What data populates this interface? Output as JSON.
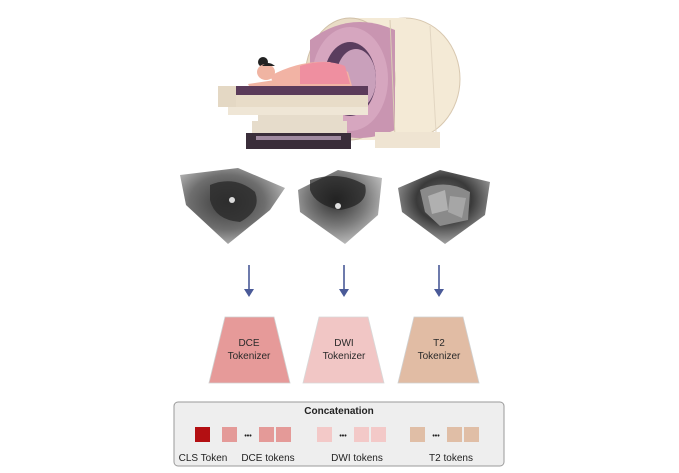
{
  "tokenizers": [
    {
      "line1": "DCE",
      "line2": "Tokenizer",
      "color": "#e69a99"
    },
    {
      "line1": "DWI",
      "line2": "Tokenizer",
      "color": "#f1c6c5"
    },
    {
      "line1": "T2",
      "line2": "Tokenizer",
      "color": "#e1bca4"
    }
  ],
  "concat": {
    "title": "Concatenation",
    "ellipsis": "•••",
    "cls_label": "CLS Token",
    "dce_label": "DCE tokens",
    "dwi_label": "DWI tokens",
    "t2_label": "T2 tokens"
  },
  "colors": {
    "cls": "#b30f12",
    "dce_token": "#e49a98",
    "dwi_token": "#f3c9c8",
    "t2_token": "#e0bea6",
    "arrow": "#4a5a98",
    "panel_bg": "#eeeeee",
    "panel_border": "#9a9a9a"
  }
}
